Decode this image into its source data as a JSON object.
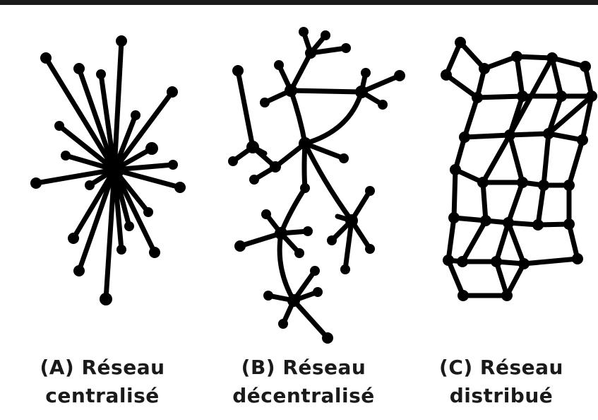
{
  "captions": {
    "a": {
      "line1": "(A) Réseau",
      "line2": "centralisé"
    },
    "b": {
      "line1": "(B) Réseau",
      "line2": "décentralisé"
    },
    "c": {
      "line1": "(C) Réseau",
      "line2": "distribué"
    }
  },
  "colors": {
    "ink": "#000000",
    "background": "#ffffff"
  }
}
